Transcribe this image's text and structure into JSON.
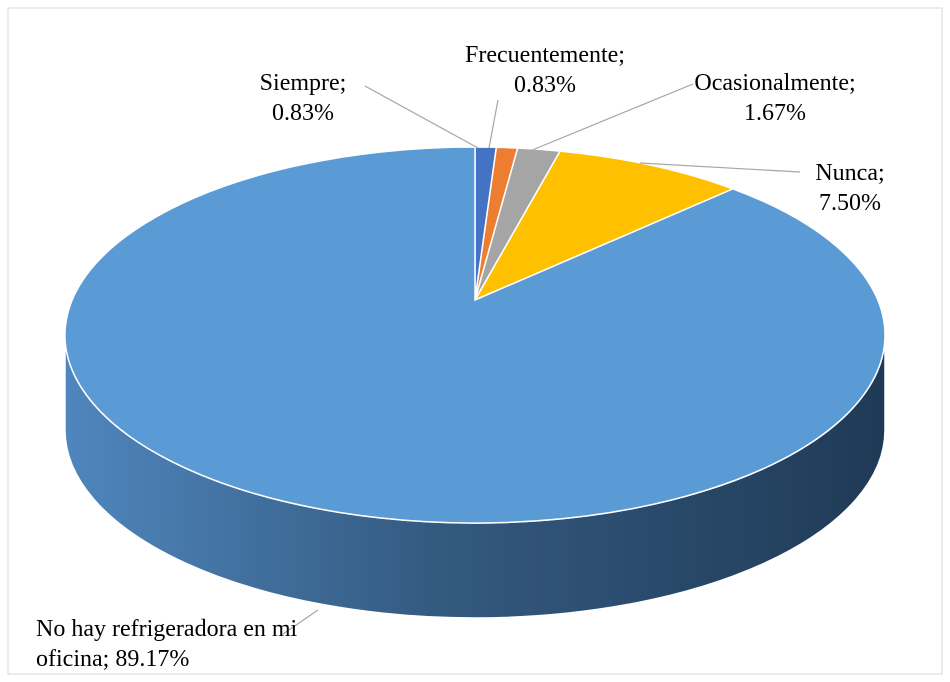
{
  "chart_data": {
    "type": "pie3d",
    "categories": [
      "Siempre",
      "Frecuentemente",
      "Ocasionalmente",
      "Nunca",
      "No hay refrigeradora en mi oficina"
    ],
    "values": [
      0.83,
      0.83,
      1.67,
      7.5,
      89.17
    ],
    "value_labels": [
      "0.83%",
      "0.83%",
      "1.67%",
      "7.50%",
      "89.17%"
    ],
    "label_separator": ";",
    "colors": [
      "#4472c4",
      "#ed7d31",
      "#a5a5a5",
      "#ffc000",
      "#5b9bd5"
    ]
  }
}
